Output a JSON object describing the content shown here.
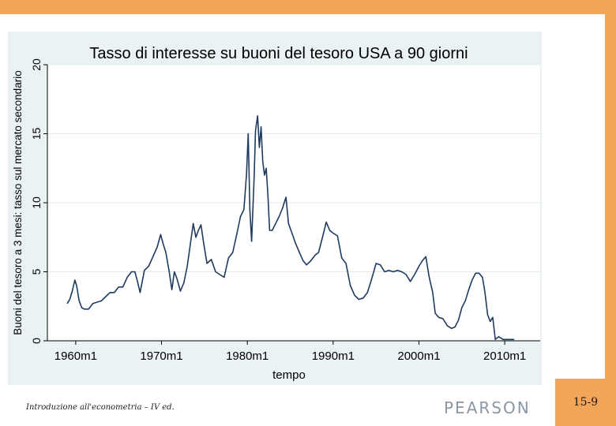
{
  "slide": {
    "footer_text": "Introduzione all'econometria – IV ed.",
    "logo_text": "PEARSON",
    "slide_number": "15-9",
    "accent_color": "#F2A65A"
  },
  "chart_data": {
    "type": "line",
    "title": "Tasso di interesse su buoni del tesoro USA a 90 giorni",
    "xlabel": "tempo",
    "ylabel": "Buoni del tesoro a 3 mesi: tasso sul mercato secondario",
    "x_ticks": [
      "1960m1",
      "1970m1",
      "1980m1",
      "1990m1",
      "2000m1",
      "2010m1"
    ],
    "y_ticks": [
      "0",
      "5",
      "10",
      "15",
      "20"
    ],
    "xlim": [
      1958.5,
      2012.5
    ],
    "ylim": [
      0,
      20
    ],
    "grid": true,
    "line_color": "#1e3a5f",
    "series": [
      {
        "x": [
          1959.0,
          1959.3,
          1959.6,
          1959.9,
          1960.1,
          1960.4,
          1960.7,
          1961.0,
          1961.5,
          1962.0,
          1962.5,
          1963.0,
          1963.5,
          1964.0,
          1964.5,
          1965.0,
          1965.5,
          1966.0,
          1966.5,
          1966.9,
          1967.2,
          1967.5,
          1968.0,
          1968.5,
          1969.0,
          1969.5,
          1969.9,
          1970.2,
          1970.5,
          1970.9,
          1971.2,
          1971.5,
          1971.8,
          1972.2,
          1972.6,
          1973.0,
          1973.4,
          1973.7,
          1974.0,
          1974.3,
          1974.6,
          1974.9,
          1975.3,
          1975.8,
          1976.3,
          1976.8,
          1977.3,
          1977.8,
          1978.3,
          1978.8,
          1979.2,
          1979.6,
          1979.9,
          1980.1,
          1980.3,
          1980.5,
          1980.8,
          1980.95,
          1981.2,
          1981.4,
          1981.6,
          1981.8,
          1982.0,
          1982.2,
          1982.4,
          1982.6,
          1982.9,
          1983.3,
          1983.7,
          1984.1,
          1984.5,
          1984.8,
          1985.2,
          1985.6,
          1986.0,
          1986.5,
          1986.9,
          1987.4,
          1987.9,
          1988.3,
          1988.8,
          1989.2,
          1989.6,
          1990.0,
          1990.5,
          1991.0,
          1991.5,
          1992.0,
          1992.5,
          1993.0,
          1993.5,
          1994.0,
          1994.5,
          1995.0,
          1995.5,
          1996.0,
          1996.5,
          1997.0,
          1997.5,
          1998.0,
          1998.5,
          1999.0,
          1999.5,
          2000.0,
          2000.4,
          2000.8,
          2001.2,
          2001.6,
          2001.9,
          2002.3,
          2002.8,
          2003.3,
          2003.8,
          2004.2,
          2004.6,
          2005.0,
          2005.4,
          2005.8,
          2006.2,
          2006.6,
          2007.0,
          2007.4,
          2007.7,
          2008.0,
          2008.3,
          2008.6,
          2008.9,
          2009.3,
          2009.8,
          2010.3,
          2010.8,
          2011.1
        ],
        "values": [
          2.7,
          3.0,
          3.6,
          4.4,
          4.0,
          2.9,
          2.4,
          2.3,
          2.3,
          2.7,
          2.8,
          2.9,
          3.2,
          3.5,
          3.5,
          3.9,
          3.9,
          4.6,
          5.0,
          5.0,
          4.3,
          3.5,
          5.1,
          5.4,
          6.1,
          6.8,
          7.7,
          7.0,
          6.4,
          5.0,
          3.7,
          5.0,
          4.5,
          3.6,
          4.2,
          5.4,
          7.2,
          8.5,
          7.5,
          8.0,
          8.4,
          7.1,
          5.6,
          5.9,
          5.0,
          4.8,
          4.6,
          6.0,
          6.4,
          7.8,
          9.0,
          9.5,
          12.0,
          15.0,
          9.5,
          7.2,
          12.0,
          15.2,
          16.3,
          14.0,
          15.5,
          13.0,
          12.0,
          12.5,
          10.5,
          8.0,
          8.0,
          8.5,
          9.0,
          9.6,
          10.4,
          8.5,
          7.8,
          7.1,
          6.5,
          5.8,
          5.5,
          5.8,
          6.2,
          6.4,
          7.6,
          8.6,
          8.0,
          7.8,
          7.6,
          6.0,
          5.6,
          4.0,
          3.3,
          3.0,
          3.1,
          3.5,
          4.5,
          5.6,
          5.5,
          5.0,
          5.1,
          5.0,
          5.1,
          5.0,
          4.8,
          4.3,
          4.8,
          5.4,
          5.8,
          6.1,
          4.6,
          3.5,
          2.0,
          1.7,
          1.6,
          1.1,
          0.9,
          1.0,
          1.5,
          2.4,
          2.9,
          3.7,
          4.4,
          4.9,
          4.9,
          4.6,
          3.5,
          1.9,
          1.4,
          1.7,
          0.1,
          0.3,
          0.1,
          0.1,
          0.1,
          0.1
        ]
      }
    ]
  }
}
